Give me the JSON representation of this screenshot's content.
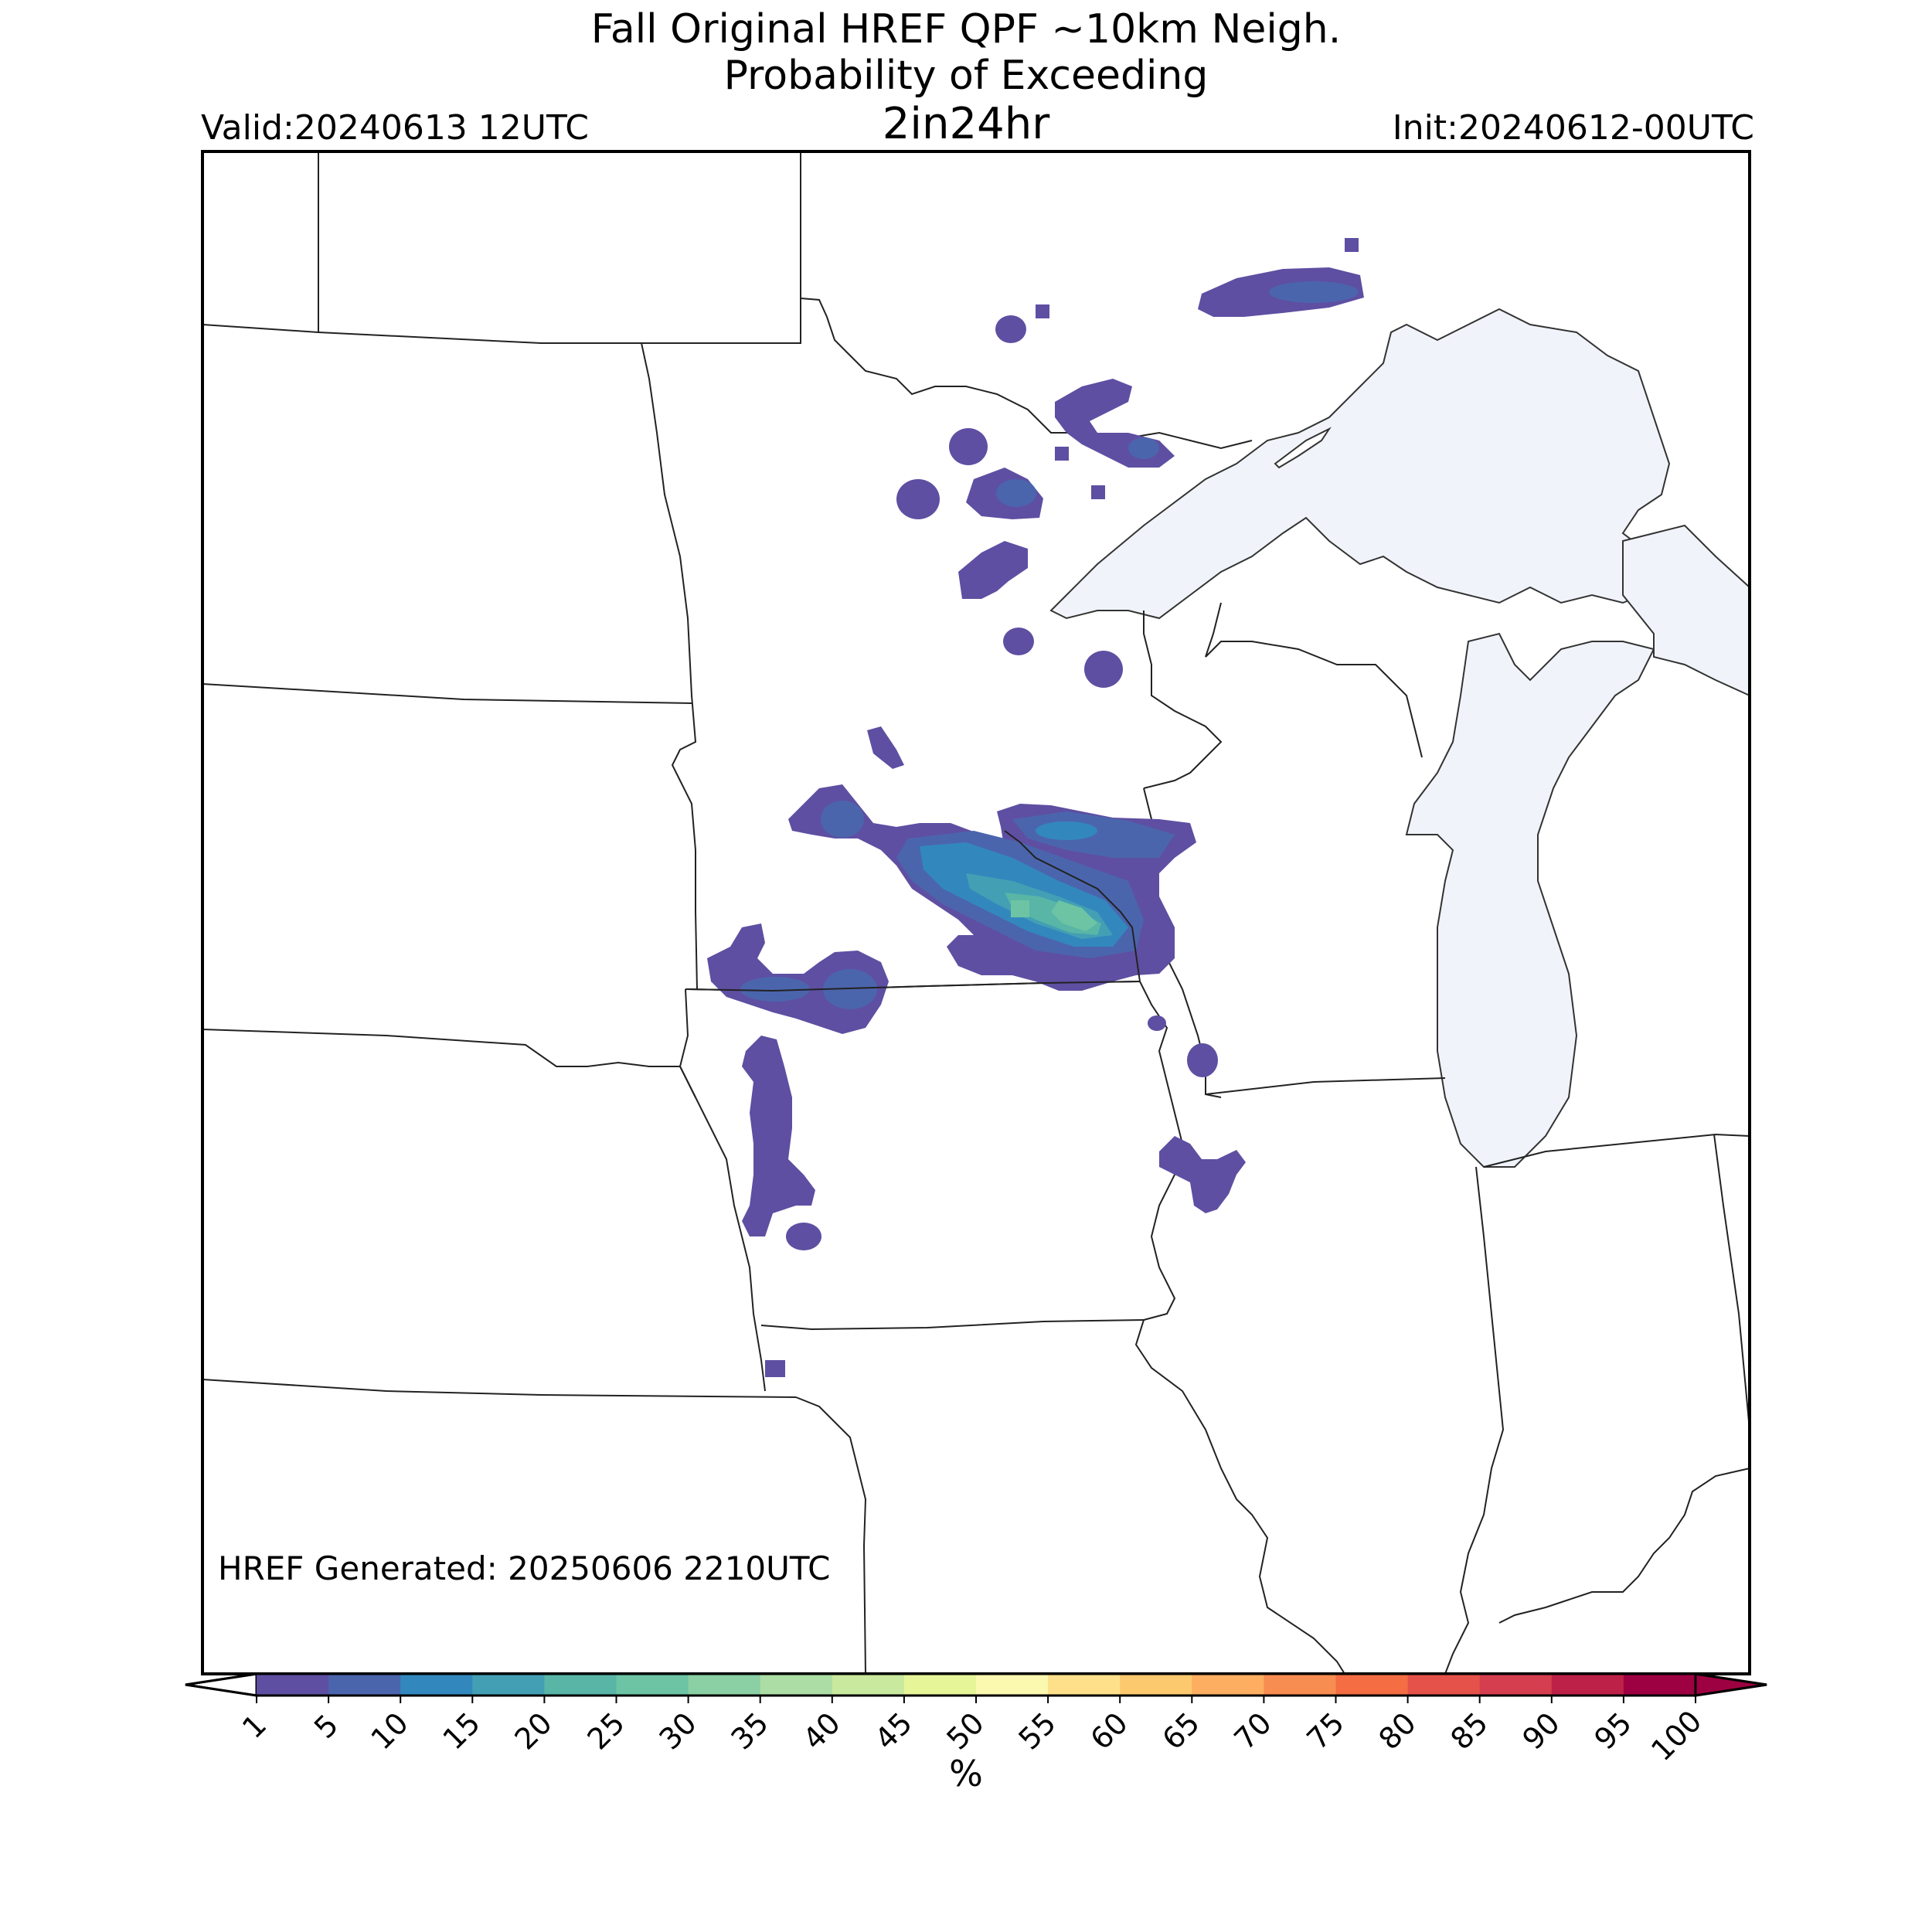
{
  "header": {
    "title_line1": "Fall Original HREF QPF ~10km Neigh.",
    "title_line2": "Probability of Exceeding",
    "title_line3": "2in24hr",
    "valid": "Valid:20240613 12UTC",
    "init": "Init:20240612-00UTC"
  },
  "footer": {
    "generated": "HREF Generated: 20250606 2210UTC"
  },
  "colorbar": {
    "label": "%",
    "ticks": [
      "1",
      "5",
      "10",
      "15",
      "20",
      "25",
      "30",
      "35",
      "40",
      "45",
      "50",
      "55",
      "60",
      "65",
      "70",
      "75",
      "80",
      "85",
      "90",
      "95",
      "100"
    ],
    "colors": [
      "#5e4fa2",
      "#4b65ad",
      "#3288bd",
      "#439fb4",
      "#59b5a6",
      "#6dc4a4",
      "#8ad0a4",
      "#abdda4",
      "#c9e99e",
      "#e6f598",
      "#fbf8b0",
      "#fee08b",
      "#fdc96f",
      "#fdae61",
      "#f88d52",
      "#f46d43",
      "#e4524a",
      "#d53e4f",
      "#bd2147",
      "#9e0142"
    ],
    "under_color": "#ffffff",
    "over_color": "#9e0142"
  },
  "map": {
    "land_color": "#ffffff",
    "water_color": "#f0f4fa",
    "border_color": "#222222"
  }
}
